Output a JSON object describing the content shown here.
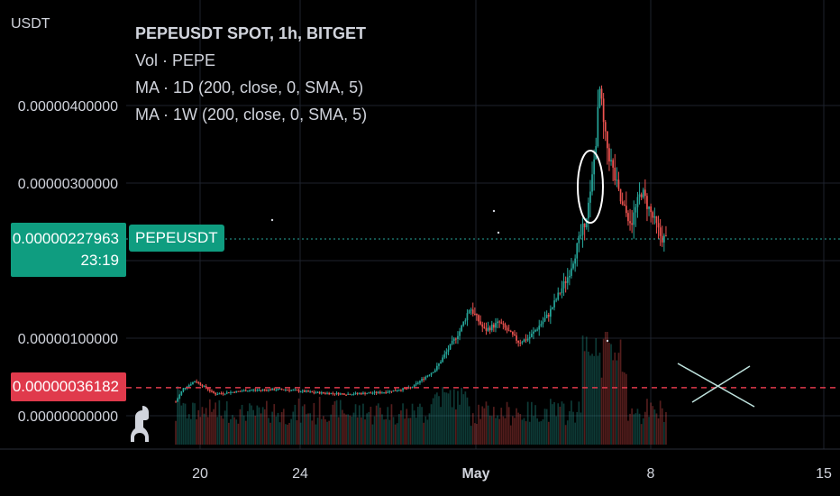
{
  "chart_data": {
    "type": "candlestick",
    "symbol": "PEPEUSDT",
    "legend": {
      "title": "PEPEUSDT SPOT, 1h, BITGET",
      "indicators": [
        "Vol · PEPE",
        "MA · 1D (200, close, 0, SMA, 5)",
        "MA · 1W (200, close, 0, SMA, 5)"
      ]
    },
    "unit": "USDT",
    "y_ticks": [
      {
        "value": 4e-06,
        "label": "0.00000400000"
      },
      {
        "value": 3e-06,
        "label": "0.00000300000"
      },
      {
        "value": 1e-06,
        "label": "0.00000100000"
      },
      {
        "value": 0.0,
        "label": "0.00000000000"
      }
    ],
    "x_ticks": [
      {
        "label": "20"
      },
      {
        "label": "24"
      },
      {
        "label": "May"
      },
      {
        "label": "8"
      },
      {
        "label": "15"
      }
    ],
    "current_price": {
      "value": 2.27963e-06,
      "label": "0.00000227963",
      "countdown": "23:19",
      "symbol_label": "PEPEUSDT"
    },
    "horizontal_line": {
      "value": 3.6182e-07,
      "label": "0.00000036182"
    },
    "colors": {
      "up": "#26a69a",
      "down": "#ef5350",
      "price_line": "#26a69a",
      "hline": "#e03a4c",
      "grid": "#1e222d",
      "background": "#000000"
    },
    "path_points": [
      [
        0.0,
        1.8e-07
      ],
      [
        0.015,
        3.5e-07
      ],
      [
        0.04,
        4.5e-07
      ],
      [
        0.08,
        2.8e-07
      ],
      [
        0.15,
        3.3e-07
      ],
      [
        0.22,
        3.4e-07
      ],
      [
        0.28,
        3e-07
      ],
      [
        0.35,
        2.8e-07
      ],
      [
        0.42,
        3e-07
      ],
      [
        0.48,
        3.6e-07
      ],
      [
        0.53,
        6e-07
      ],
      [
        0.56,
        9e-07
      ],
      [
        0.58,
        1.1e-06
      ],
      [
        0.6,
        1.4e-06
      ],
      [
        0.63,
        1.1e-06
      ],
      [
        0.66,
        1.2e-06
      ],
      [
        0.7,
        9.5e-07
      ],
      [
        0.72,
        1e-06
      ],
      [
        0.76,
        1.3e-06
      ],
      [
        0.8,
        1.8e-06
      ],
      [
        0.83,
        2.4e-06
      ],
      [
        0.845,
        2.8e-06
      ],
      [
        0.855,
        3.4e-06
      ],
      [
        0.865,
        4.2e-06
      ],
      [
        0.875,
        3.6e-06
      ],
      [
        0.89,
        3.2e-06
      ],
      [
        0.91,
        2.7e-06
      ],
      [
        0.93,
        2.5e-06
      ],
      [
        0.95,
        2.9e-06
      ],
      [
        0.97,
        2.6e-06
      ],
      [
        0.99,
        2.3e-06
      ],
      [
        1.0,
        2.28e-06
      ]
    ]
  }
}
